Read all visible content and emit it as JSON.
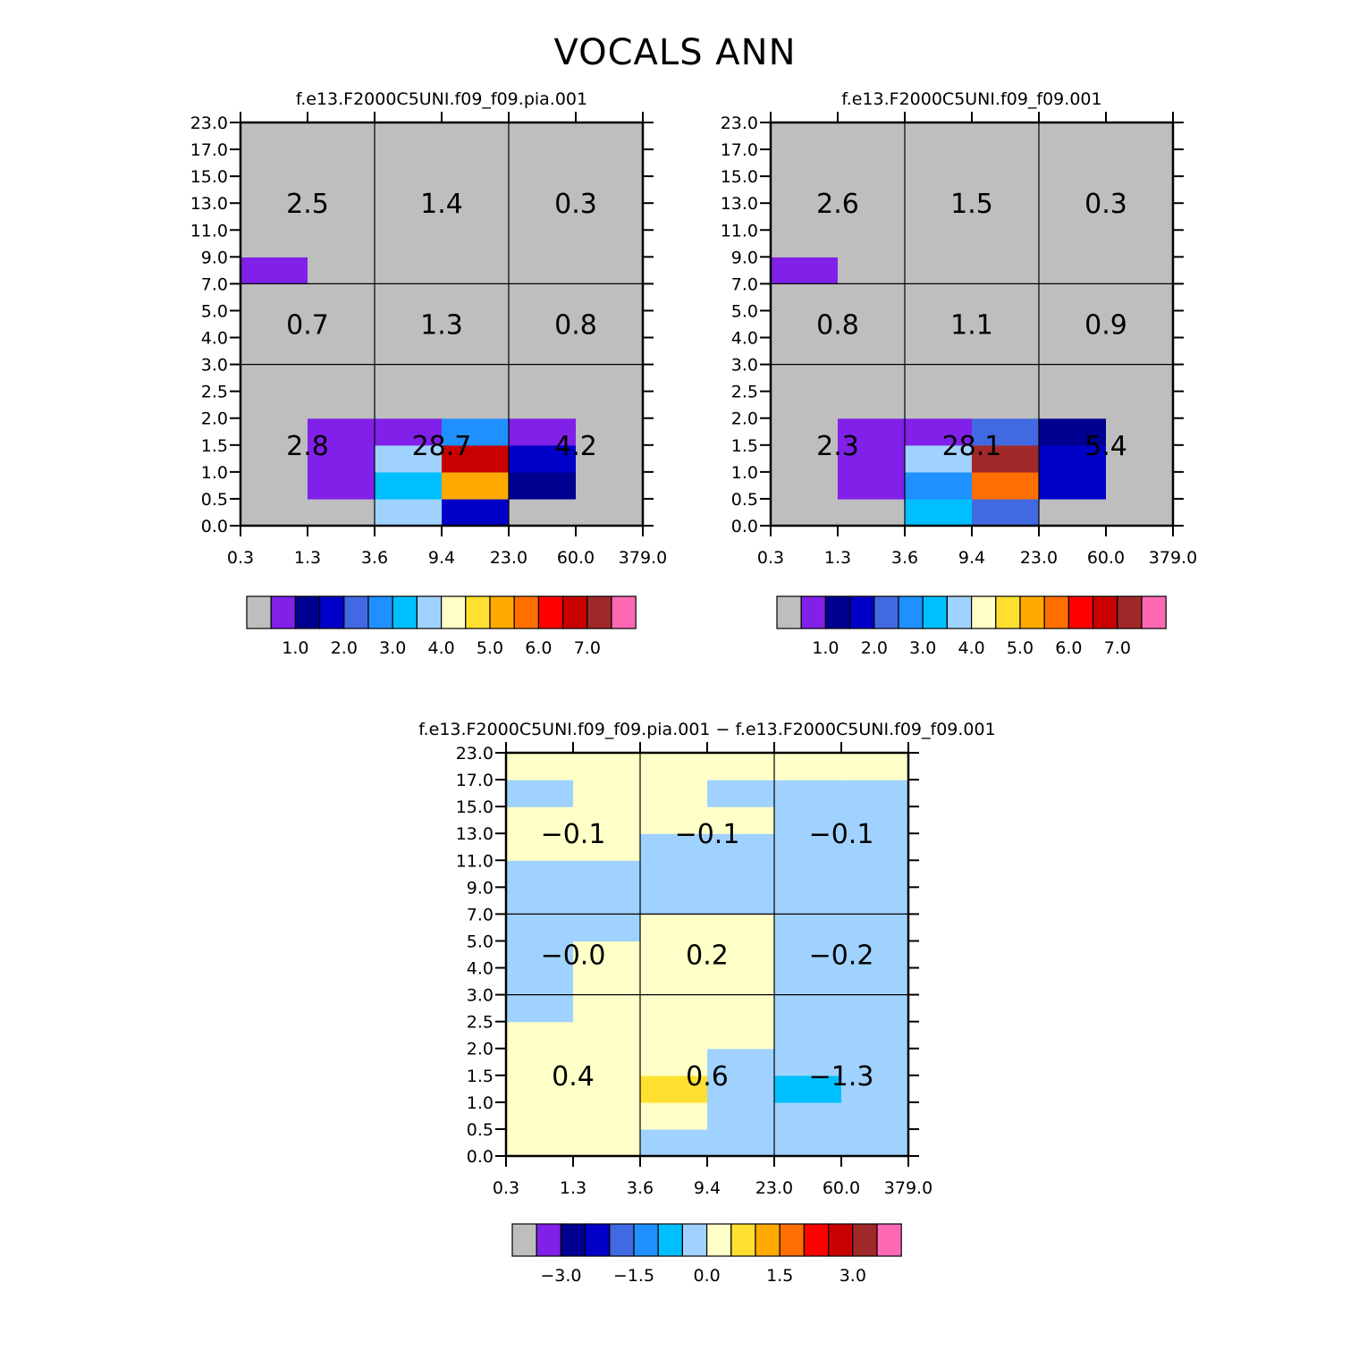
{
  "title": "VOCALS ANN",
  "colors": {
    "palette": [
      "#bebebe",
      "#8020e8",
      "#000090",
      "#0000c8",
      "#4169e1",
      "#1e90ff",
      "#00bfff",
      "#a0d2ff",
      "#ffffc8",
      "#ffe030",
      "#ffaa00",
      "#ff6e00",
      "#ff0000",
      "#c80000",
      "#a02828",
      "#ff69b4"
    ],
    "axis": "#000000",
    "background": "#ffffff"
  },
  "chart_data": [
    {
      "type": "heatmap",
      "title": "f.e13.F2000C5UNI.f09_f09.pia.001",
      "x_tick_labels": [
        "0.3",
        "1.3",
        "3.6",
        "9.4",
        "23.0",
        "60.0",
        "379.0"
      ],
      "y_tick_labels": [
        "0.0",
        "0.5",
        "1.0",
        "1.5",
        "2.0",
        "2.5",
        "3.0",
        "4.0",
        "5.0",
        "7.0",
        "9.0",
        "11.0",
        "13.0",
        "15.0",
        "17.0",
        "23.0"
      ],
      "colorbar_labels": [
        "1.0",
        "2.0",
        "3.0",
        "4.0",
        "5.0",
        "6.0",
        "7.0"
      ],
      "cells_color_index_rows_bottom_to_top": [
        [
          0,
          0,
          7,
          3,
          0,
          0
        ],
        [
          0,
          1,
          6,
          10,
          2,
          0
        ],
        [
          0,
          1,
          7,
          13,
          3,
          0
        ],
        [
          0,
          1,
          1,
          5,
          1,
          0
        ],
        [
          0,
          0,
          0,
          0,
          0,
          0
        ],
        [
          0,
          0,
          0,
          0,
          0,
          0
        ],
        [
          0,
          0,
          0,
          0,
          0,
          0
        ],
        [
          0,
          0,
          0,
          0,
          0,
          0
        ],
        [
          0,
          0,
          0,
          0,
          0,
          0
        ],
        [
          1,
          0,
          0,
          0,
          0,
          0
        ],
        [
          0,
          0,
          0,
          0,
          0,
          0
        ],
        [
          0,
          0,
          0,
          0,
          0,
          0
        ],
        [
          0,
          0,
          0,
          0,
          0,
          0
        ],
        [
          0,
          0,
          0,
          0,
          0,
          0
        ],
        [
          0,
          0,
          0,
          0,
          0,
          0
        ]
      ],
      "group_values": [
        [
          "0.7",
          "1.3",
          "0.8"
        ],
        [
          "2.5",
          "1.4",
          "0.3"
        ]
      ],
      "group_values_low": [
        "2.8",
        "28.7",
        "4.2"
      ]
    },
    {
      "type": "heatmap",
      "title": "f.e13.F2000C5UNI.f09_f09.001",
      "x_tick_labels": [
        "0.3",
        "1.3",
        "3.6",
        "9.4",
        "23.0",
        "60.0",
        "379.0"
      ],
      "y_tick_labels": [
        "0.0",
        "0.5",
        "1.0",
        "1.5",
        "2.0",
        "2.5",
        "3.0",
        "4.0",
        "5.0",
        "7.0",
        "9.0",
        "11.0",
        "13.0",
        "15.0",
        "17.0",
        "23.0"
      ],
      "colorbar_labels": [
        "1.0",
        "2.0",
        "3.0",
        "4.0",
        "5.0",
        "6.0",
        "7.0"
      ],
      "cells_color_index_rows_bottom_to_top": [
        [
          0,
          0,
          6,
          4,
          0,
          0
        ],
        [
          0,
          1,
          5,
          11,
          3,
          0
        ],
        [
          0,
          1,
          7,
          14,
          3,
          0
        ],
        [
          0,
          1,
          1,
          4,
          2,
          0
        ],
        [
          0,
          0,
          0,
          0,
          0,
          0
        ],
        [
          0,
          0,
          0,
          0,
          0,
          0
        ],
        [
          0,
          0,
          0,
          0,
          0,
          0
        ],
        [
          0,
          0,
          0,
          0,
          0,
          0
        ],
        [
          0,
          0,
          0,
          0,
          0,
          0
        ],
        [
          1,
          0,
          0,
          0,
          0,
          0
        ],
        [
          0,
          0,
          0,
          0,
          0,
          0
        ],
        [
          0,
          0,
          0,
          0,
          0,
          0
        ],
        [
          0,
          0,
          0,
          0,
          0,
          0
        ],
        [
          0,
          0,
          0,
          0,
          0,
          0
        ],
        [
          0,
          0,
          0,
          0,
          0,
          0
        ]
      ],
      "group_values": [
        [
          "0.8",
          "1.1",
          "0.9"
        ],
        [
          "2.6",
          "1.5",
          "0.3"
        ]
      ],
      "group_values_low": [
        "2.3",
        "28.1",
        "5.4"
      ]
    },
    {
      "type": "heatmap",
      "title": "f.e13.F2000C5UNI.f09_f09.pia.001 − f.e13.F2000C5UNI.f09_f09.001",
      "x_tick_labels": [
        "0.3",
        "1.3",
        "3.6",
        "9.4",
        "23.0",
        "60.0",
        "379.0"
      ],
      "y_tick_labels": [
        "0.0",
        "0.5",
        "1.0",
        "1.5",
        "2.0",
        "2.5",
        "3.0",
        "4.0",
        "5.0",
        "7.0",
        "9.0",
        "11.0",
        "13.0",
        "15.0",
        "17.0",
        "23.0"
      ],
      "colorbar_labels": [
        "−3.0",
        "−1.5",
        "0.0",
        "1.5",
        "3.0"
      ],
      "cells_color_index_rows_bottom_to_top": [
        [
          8,
          8,
          7,
          7,
          7,
          7
        ],
        [
          8,
          8,
          8,
          7,
          7,
          7
        ],
        [
          8,
          8,
          9,
          7,
          6,
          7
        ],
        [
          8,
          8,
          8,
          7,
          7,
          7
        ],
        [
          8,
          8,
          8,
          8,
          7,
          7
        ],
        [
          7,
          8,
          8,
          8,
          7,
          7
        ],
        [
          7,
          8,
          8,
          8,
          7,
          7
        ],
        [
          7,
          8,
          8,
          8,
          7,
          7
        ],
        [
          7,
          7,
          8,
          8,
          7,
          7
        ],
        [
          7,
          7,
          7,
          7,
          7,
          7
        ],
        [
          7,
          7,
          7,
          7,
          7,
          7
        ],
        [
          8,
          8,
          7,
          7,
          7,
          7
        ],
        [
          8,
          8,
          8,
          8,
          7,
          7
        ],
        [
          7,
          8,
          8,
          7,
          7,
          7
        ],
        [
          8,
          8,
          8,
          8,
          8,
          8
        ]
      ],
      "group_values": [
        [
          "−0.0",
          "0.2",
          "−0.2"
        ],
        [
          "−0.1",
          "−0.1",
          "−0.1"
        ]
      ],
      "group_values_low": [
        "0.4",
        "0.6",
        "−1.3"
      ]
    }
  ]
}
